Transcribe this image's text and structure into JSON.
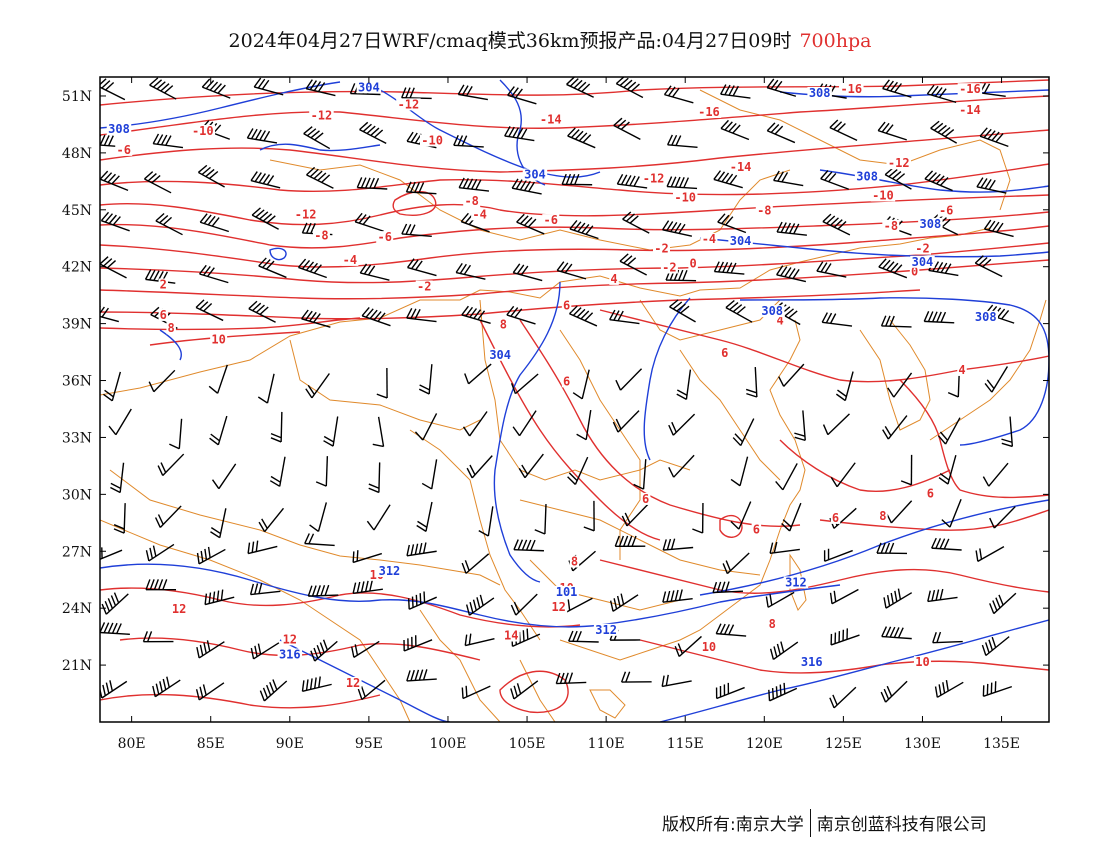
{
  "title": {
    "main": "2024年04月27日WRF/cmaq模式36km预报产品:04月27日09时",
    "level": "700hpa"
  },
  "colors": {
    "temperature": "#e0302f",
    "geopotential": "#1f3fd8",
    "boundary": "#e08a2c",
    "wind": "#000000",
    "frame": "#000000"
  },
  "map": {
    "lon_range": [
      78,
      138
    ],
    "lat_range": [
      18,
      52
    ],
    "lon_ticks": [
      {
        "value": 80,
        "label": "80E"
      },
      {
        "value": 85,
        "label": "85E"
      },
      {
        "value": 90,
        "label": "90E"
      },
      {
        "value": 95,
        "label": "95E"
      },
      {
        "value": 100,
        "label": "100E"
      },
      {
        "value": 105,
        "label": "105E"
      },
      {
        "value": 110,
        "label": "110E"
      },
      {
        "value": 115,
        "label": "115E"
      },
      {
        "value": 120,
        "label": "120E"
      },
      {
        "value": 125,
        "label": "125E"
      },
      {
        "value": 130,
        "label": "130E"
      },
      {
        "value": 135,
        "label": "135E"
      }
    ],
    "lat_ticks": [
      {
        "value": 51,
        "label": "51N"
      },
      {
        "value": 48,
        "label": "48N"
      },
      {
        "value": 45,
        "label": "45N"
      },
      {
        "value": 42,
        "label": "42N"
      },
      {
        "value": 39,
        "label": "39N"
      },
      {
        "value": 36,
        "label": "36N"
      },
      {
        "value": 33,
        "label": "33N"
      },
      {
        "value": 30,
        "label": "30N"
      },
      {
        "value": 27,
        "label": "27N"
      },
      {
        "value": 24,
        "label": "24N"
      },
      {
        "value": 21,
        "label": "21N"
      }
    ],
    "temperature_labels": [
      {
        "text": "-16",
        "lon": 116.5,
        "lat": 50.0
      },
      {
        "text": "-16",
        "lon": 125.5,
        "lat": 51.2
      },
      {
        "text": "-16",
        "lon": 133.0,
        "lat": 51.2
      },
      {
        "text": "-14",
        "lon": 106.5,
        "lat": 49.6
      },
      {
        "text": "-14",
        "lon": 133.0,
        "lat": 50.1
      },
      {
        "text": "-14",
        "lon": 118.5,
        "lat": 47.1
      },
      {
        "text": "-12",
        "lon": 92.0,
        "lat": 49.8
      },
      {
        "text": "-12",
        "lon": 97.5,
        "lat": 50.4
      },
      {
        "text": "-12",
        "lon": 113.0,
        "lat": 46.5
      },
      {
        "text": "-12",
        "lon": 128.5,
        "lat": 47.3
      },
      {
        "text": "-12",
        "lon": 91.0,
        "lat": 44.6
      },
      {
        "text": "-10",
        "lon": 84.5,
        "lat": 49.0
      },
      {
        "text": "-10",
        "lon": 99.0,
        "lat": 48.5
      },
      {
        "text": "-10",
        "lon": 115.0,
        "lat": 45.5
      },
      {
        "text": "-10",
        "lon": 127.5,
        "lat": 45.6
      },
      {
        "text": "-8",
        "lon": 101.5,
        "lat": 45.3
      },
      {
        "text": "-8",
        "lon": 120.0,
        "lat": 44.8
      },
      {
        "text": "-8",
        "lon": 128.0,
        "lat": 44.0
      },
      {
        "text": "-8",
        "lon": 92.0,
        "lat": 43.5
      },
      {
        "text": "-6",
        "lon": 79.5,
        "lat": 48.0
      },
      {
        "text": "-6",
        "lon": 106.5,
        "lat": 44.3
      },
      {
        "text": "-6",
        "lon": 131.5,
        "lat": 44.8
      },
      {
        "text": "-6",
        "lon": 96.0,
        "lat": 43.4
      },
      {
        "text": "-4",
        "lon": 102.0,
        "lat": 44.6
      },
      {
        "text": "-4",
        "lon": 93.8,
        "lat": 42.2
      },
      {
        "text": "-4",
        "lon": 116.5,
        "lat": 43.3
      },
      {
        "text": "-2",
        "lon": 130.0,
        "lat": 42.8
      },
      {
        "text": "-2",
        "lon": 113.5,
        "lat": 42.8
      },
      {
        "text": "-2",
        "lon": 98.5,
        "lat": 40.8
      },
      {
        "text": "-2",
        "lon": 114.0,
        "lat": 41.8
      },
      {
        "text": "2",
        "lon": 82.0,
        "lat": 40.9
      },
      {
        "text": "0",
        "lon": 115.5,
        "lat": 42.0
      },
      {
        "text": "0",
        "lon": 129.5,
        "lat": 41.6
      },
      {
        "text": "4",
        "lon": 110.5,
        "lat": 41.2
      },
      {
        "text": "4",
        "lon": 121.0,
        "lat": 39.0
      },
      {
        "text": "4",
        "lon": 132.5,
        "lat": 36.4
      },
      {
        "text": "6",
        "lon": 82.0,
        "lat": 39.3
      },
      {
        "text": "6",
        "lon": 107.5,
        "lat": 39.8
      },
      {
        "text": "6",
        "lon": 117.5,
        "lat": 37.3
      },
      {
        "text": "6",
        "lon": 107.5,
        "lat": 35.8
      },
      {
        "text": "6",
        "lon": 112.5,
        "lat": 29.6
      },
      {
        "text": "6",
        "lon": 130.5,
        "lat": 29.9
      },
      {
        "text": "6",
        "lon": 124.5,
        "lat": 28.6
      },
      {
        "text": "8",
        "lon": 82.5,
        "lat": 38.6
      },
      {
        "text": "8",
        "lon": 103.5,
        "lat": 38.8
      },
      {
        "text": "8",
        "lon": 108.0,
        "lat": 26.3
      },
      {
        "text": "8",
        "lon": 120.5,
        "lat": 23.0
      },
      {
        "text": "8",
        "lon": 127.5,
        "lat": 28.7
      },
      {
        "text": "6",
        "lon": 119.5,
        "lat": 28.0
      },
      {
        "text": "10",
        "lon": 85.5,
        "lat": 38.0
      },
      {
        "text": "10",
        "lon": 95.5,
        "lat": 25.6
      },
      {
        "text": "10",
        "lon": 107.5,
        "lat": 24.9
      },
      {
        "text": "10",
        "lon": 116.5,
        "lat": 21.8
      },
      {
        "text": "10",
        "lon": 130.0,
        "lat": 21.0
      },
      {
        "text": "12",
        "lon": 83.0,
        "lat": 23.8
      },
      {
        "text": "12",
        "lon": 90.0,
        "lat": 22.2
      },
      {
        "text": "12",
        "lon": 107.0,
        "lat": 23.9
      },
      {
        "text": "12",
        "lon": 94.0,
        "lat": 19.9
      },
      {
        "text": "14",
        "lon": 104.0,
        "lat": 22.4
      }
    ],
    "geopotential_labels": [
      {
        "text": "304",
        "lon": 95.0,
        "lat": 51.3
      },
      {
        "text": "308",
        "lon": 79.2,
        "lat": 49.1
      },
      {
        "text": "304",
        "lon": 105.5,
        "lat": 46.7
      },
      {
        "text": "308",
        "lon": 123.5,
        "lat": 51.0
      },
      {
        "text": "308",
        "lon": 126.5,
        "lat": 46.6
      },
      {
        "text": "308",
        "lon": 130.5,
        "lat": 44.1
      },
      {
        "text": "304",
        "lon": 118.5,
        "lat": 43.2
      },
      {
        "text": "304",
        "lon": 130.0,
        "lat": 42.1
      },
      {
        "text": "308",
        "lon": 120.5,
        "lat": 39.5
      },
      {
        "text": "308",
        "lon": 134.0,
        "lat": 39.2
      },
      {
        "text": "304",
        "lon": 103.3,
        "lat": 37.2
      },
      {
        "text": "312",
        "lon": 96.3,
        "lat": 25.8
      },
      {
        "text": "312",
        "lon": 110.0,
        "lat": 22.7
      },
      {
        "text": "312",
        "lon": 122.0,
        "lat": 25.2
      },
      {
        "text": "316",
        "lon": 90.0,
        "lat": 21.4
      },
      {
        "text": "316",
        "lon": 123.0,
        "lat": 21.0
      },
      {
        "text": "101",
        "lon": 107.5,
        "lat": 24.7
      }
    ]
  },
  "footer": {
    "left": "版权所有:南京大学",
    "right": "南京创蓝科技有限公司"
  }
}
